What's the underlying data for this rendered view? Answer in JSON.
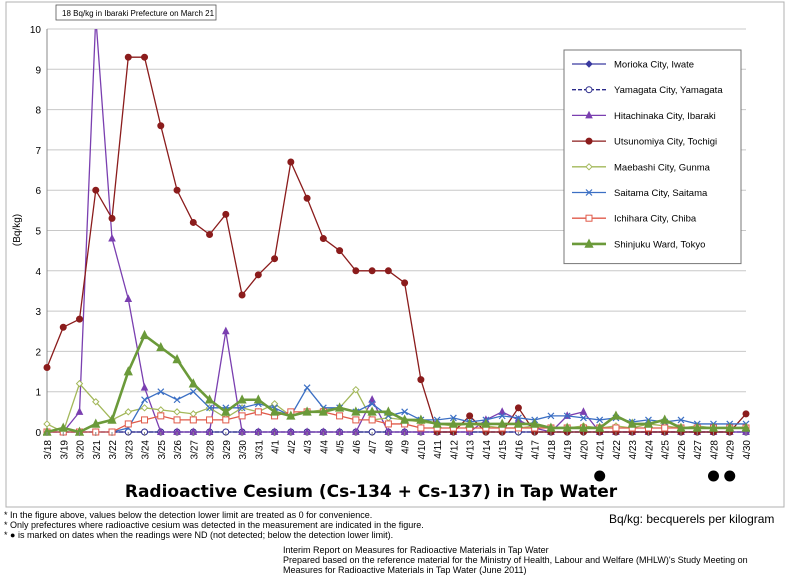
{
  "chart_data": {
    "type": "line",
    "title": "Radioactive Cesium (Cs-134 + Cs-137) in Tap Water",
    "ylabel": "(Bq/kg)",
    "ylim": [
      0,
      10
    ],
    "yticks": [
      "0",
      "1",
      "2",
      "3",
      "4",
      "5",
      "6",
      "7",
      "8",
      "9",
      "10"
    ],
    "annotation": "18 Bq/kg in Ibaraki Prefecture on March 21",
    "grid": "horizontal",
    "legend_position": "top-right",
    "x": [
      "3/18",
      "3/19",
      "3/20",
      "3/21",
      "3/22",
      "3/23",
      "3/24",
      "3/25",
      "3/26",
      "3/27",
      "3/28",
      "3/29",
      "3/30",
      "3/31",
      "4/1",
      "4/2",
      "4/3",
      "4/4",
      "4/5",
      "4/6",
      "4/7",
      "4/8",
      "4/9",
      "4/10",
      "4/11",
      "4/12",
      "4/13",
      "4/14",
      "4/15",
      "4/16",
      "4/17",
      "4/18",
      "4/19",
      "4/20",
      "4/21",
      "4/22",
      "4/23",
      "4/24",
      "4/25",
      "4/26",
      "4/27",
      "4/28",
      "4/29",
      "4/30"
    ],
    "nd_dates": [
      "4/21",
      "4/28",
      "4/29"
    ],
    "series": [
      {
        "name": "Morioka City, Iwate",
        "color": "#3a3aa0",
        "marker": "diamond",
        "values": [
          0,
          0,
          0,
          0,
          0,
          0,
          0,
          0,
          0,
          0,
          0,
          0,
          0,
          0,
          0,
          0,
          0,
          0,
          0,
          0,
          0,
          0,
          0,
          0,
          0,
          0,
          0,
          0,
          0,
          0,
          0,
          0,
          0,
          0,
          0,
          0,
          0,
          0,
          0,
          0,
          0,
          0,
          0,
          0
        ]
      },
      {
        "name": "Yamagata City, Yamagata",
        "color": "#2a2a8a",
        "marker": "circle-open",
        "dashed": true,
        "values": [
          0,
          0,
          0,
          0,
          0,
          0,
          0,
          0,
          0,
          0,
          0,
          0,
          0,
          0,
          0,
          0,
          0,
          0,
          0,
          0,
          0,
          0,
          0,
          0,
          0,
          0,
          0,
          0,
          0,
          0,
          0,
          0,
          0,
          0,
          0,
          0,
          0,
          0,
          0,
          0,
          0,
          0,
          0,
          0
        ]
      },
      {
        "name": "Hitachinaka City, Ibaraki",
        "color": "#7a3fb0",
        "marker": "triangle",
        "values": [
          0,
          0,
          0.5,
          18,
          4.8,
          3.3,
          1.1,
          0,
          0,
          0,
          0,
          2.5,
          0,
          0,
          0,
          0,
          0,
          0,
          0,
          0,
          0.8,
          0,
          0,
          0,
          0,
          0,
          0,
          0.3,
          0.5,
          0.3,
          0.1,
          0,
          0.4,
          0.5,
          0,
          0,
          0,
          0,
          0,
          0,
          0,
          0,
          0,
          0
        ]
      },
      {
        "name": "Utsunomiya City, Tochigi",
        "color": "#8b1c1c",
        "marker": "circle",
        "values": [
          1.6,
          2.6,
          2.8,
          6.0,
          5.3,
          9.3,
          9.3,
          7.6,
          6.0,
          5.2,
          4.9,
          5.4,
          3.4,
          3.9,
          4.3,
          6.7,
          5.8,
          4.8,
          4.5,
          4.0,
          4.0,
          4.0,
          3.7,
          1.3,
          0,
          0,
          0.4,
          0,
          0,
          0.6,
          0,
          0,
          0,
          0,
          0,
          0,
          0,
          0,
          0,
          0,
          0,
          0,
          0,
          0.45
        ]
      },
      {
        "name": "Maebashi City, Gunma",
        "color": "#a3b85a",
        "marker": "diamond-open",
        "values": [
          0.2,
          0,
          1.2,
          0.75,
          0.3,
          0.5,
          0.6,
          0.55,
          0.5,
          0.45,
          0.6,
          0.35,
          0.6,
          0.5,
          0.7,
          0.4,
          0.5,
          0.55,
          0.6,
          1.05,
          0.3,
          0.35,
          0.3,
          0.25,
          0.2,
          0.15,
          0.2,
          0.15,
          0.1,
          0.1,
          0.15,
          0.1,
          0.1,
          0.15,
          0.1,
          0.15,
          0.1,
          0.2,
          0.15,
          0.1,
          0.15,
          0.1,
          0.1,
          0.1
        ]
      },
      {
        "name": "Saitama City, Saitama",
        "color": "#3b6fc4",
        "marker": "x",
        "values": [
          0,
          0,
          0,
          0,
          0,
          0.1,
          0.8,
          1.0,
          0.8,
          1.0,
          0.6,
          0.6,
          0.6,
          0.7,
          0.6,
          0.4,
          1.1,
          0.6,
          0.6,
          0.5,
          0.7,
          0.4,
          0.5,
          0.3,
          0.3,
          0.35,
          0.25,
          0.3,
          0.4,
          0.35,
          0.3,
          0.4,
          0.4,
          0.35,
          0.3,
          0.35,
          0.25,
          0.3,
          0.25,
          0.3,
          0.2,
          0.2,
          0.2,
          0.2
        ]
      },
      {
        "name": "Ichihara City, Chiba",
        "color": "#e05a4a",
        "marker": "square-open",
        "values": [
          0,
          0,
          0,
          0,
          0,
          0.2,
          0.3,
          0.4,
          0.3,
          0.3,
          0.3,
          0.3,
          0.4,
          0.5,
          0.4,
          0.5,
          0.5,
          0.5,
          0.4,
          0.3,
          0.3,
          0.2,
          0.2,
          0.1,
          0.1,
          0.1,
          0.1,
          0.1,
          0.1,
          0.1,
          0.1,
          0.1,
          0.1,
          0.1,
          0.1,
          0.1,
          0.1,
          0.1,
          0.1,
          0.1,
          0.1,
          0.1,
          0.1,
          0.1
        ]
      },
      {
        "name": "Shinjuku Ward, Tokyo",
        "color": "#6b9a3a",
        "marker": "triangle",
        "thick": true,
        "values": [
          0,
          0.1,
          0,
          0.2,
          0.3,
          1.5,
          2.4,
          2.1,
          1.8,
          1.2,
          0.8,
          0.5,
          0.8,
          0.8,
          0.5,
          0.4,
          0.5,
          0.5,
          0.6,
          0.5,
          0.5,
          0.5,
          0.3,
          0.3,
          0.2,
          0.2,
          0.2,
          0.2,
          0.2,
          0.2,
          0.2,
          0.1,
          0.1,
          0.1,
          0.1,
          0.4,
          0.2,
          0.2,
          0.3,
          0.1,
          0.1,
          0.1,
          0.1,
          0.1
        ]
      }
    ]
  },
  "chart_title": "Radioactive Cesium (Cs-134 + Cs-137) in Tap Water",
  "footnotes": [
    "* In the figure above, values below the detection lower limit are treated as 0 for convenience.",
    "* Only prefectures where radioactive cesium was detected in the measurement are indicated in the figure.",
    "* ● is marked on dates when the readings were ND (not detected; below the detection lower limit)."
  ],
  "unit_note": "Bq/kg: becquerels per kilogram",
  "source": [
    "Interim Report on Measures for Radioactive Materials in Tap Water",
    "Prepared based on the reference material for the Ministry of Health, Labour and Welfare (MHLW)'s Study Meeting on",
    "Measures for Radioactive Materials in Tap Water (June 2011)"
  ]
}
